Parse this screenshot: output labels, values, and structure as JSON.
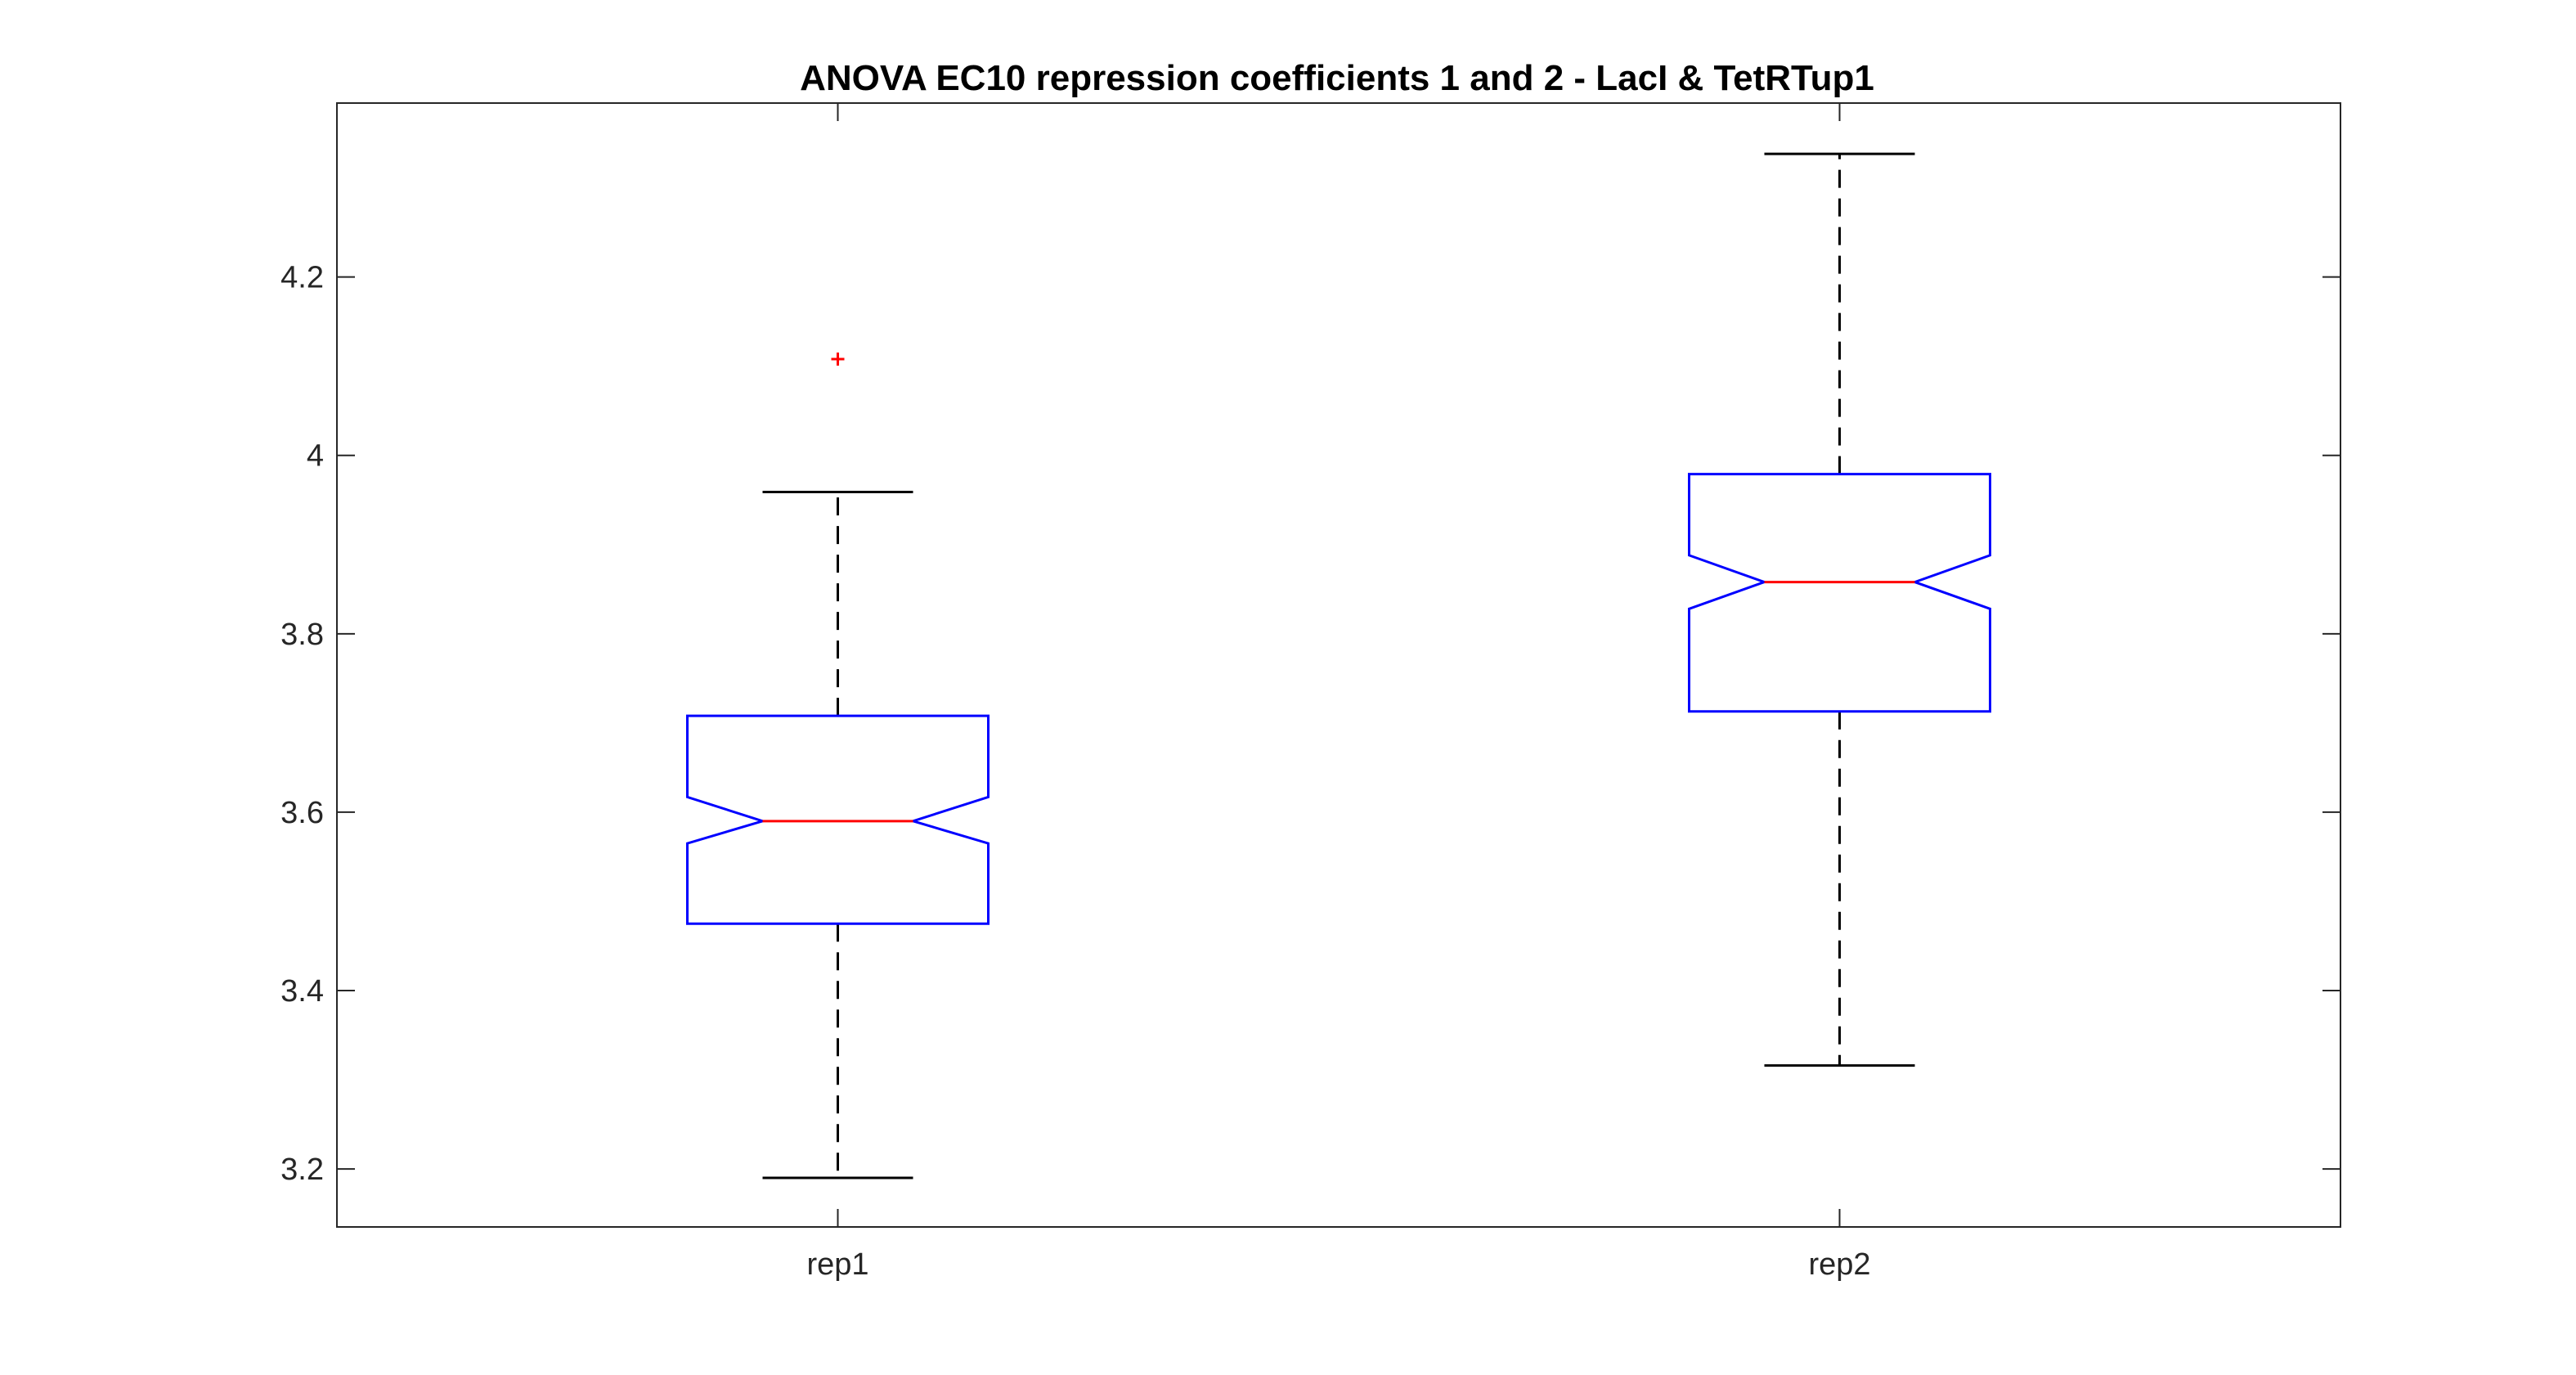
{
  "chart_data": {
    "type": "boxplot",
    "title": "ANOVA EC10 repression coefficients 1 and 2 - LacI & TetRTup1",
    "xlabel": "",
    "ylabel": "",
    "categories": [
      "rep1",
      "rep2"
    ],
    "ylim": [
      3.135,
      4.395
    ],
    "yticks": [
      3.2,
      3.4,
      3.6,
      3.8,
      4.0,
      4.2
    ],
    "ytick_labels": [
      "3.2",
      "3.4",
      "3.6",
      "3.8",
      "4",
      "4.2"
    ],
    "notched": true,
    "grid": false,
    "boxes": [
      {
        "category": "rep1",
        "whisker_low": 3.19,
        "q1": 3.475,
        "notch_low": 3.565,
        "median": 3.59,
        "notch_high": 3.617,
        "q3": 3.708,
        "whisker_high": 3.959,
        "outliers": [
          4.108
        ]
      },
      {
        "category": "rep2",
        "whisker_low": 3.316,
        "q1": 3.713,
        "notch_low": 3.828,
        "median": 3.858,
        "notch_high": 3.888,
        "q3": 3.979,
        "whisker_high": 4.338,
        "outliers": []
      }
    ],
    "colors": {
      "box": "#0000ff",
      "median": "#ff0000",
      "whisker": "#000000",
      "outlier": "#ff0000",
      "axes": "#262626"
    }
  }
}
